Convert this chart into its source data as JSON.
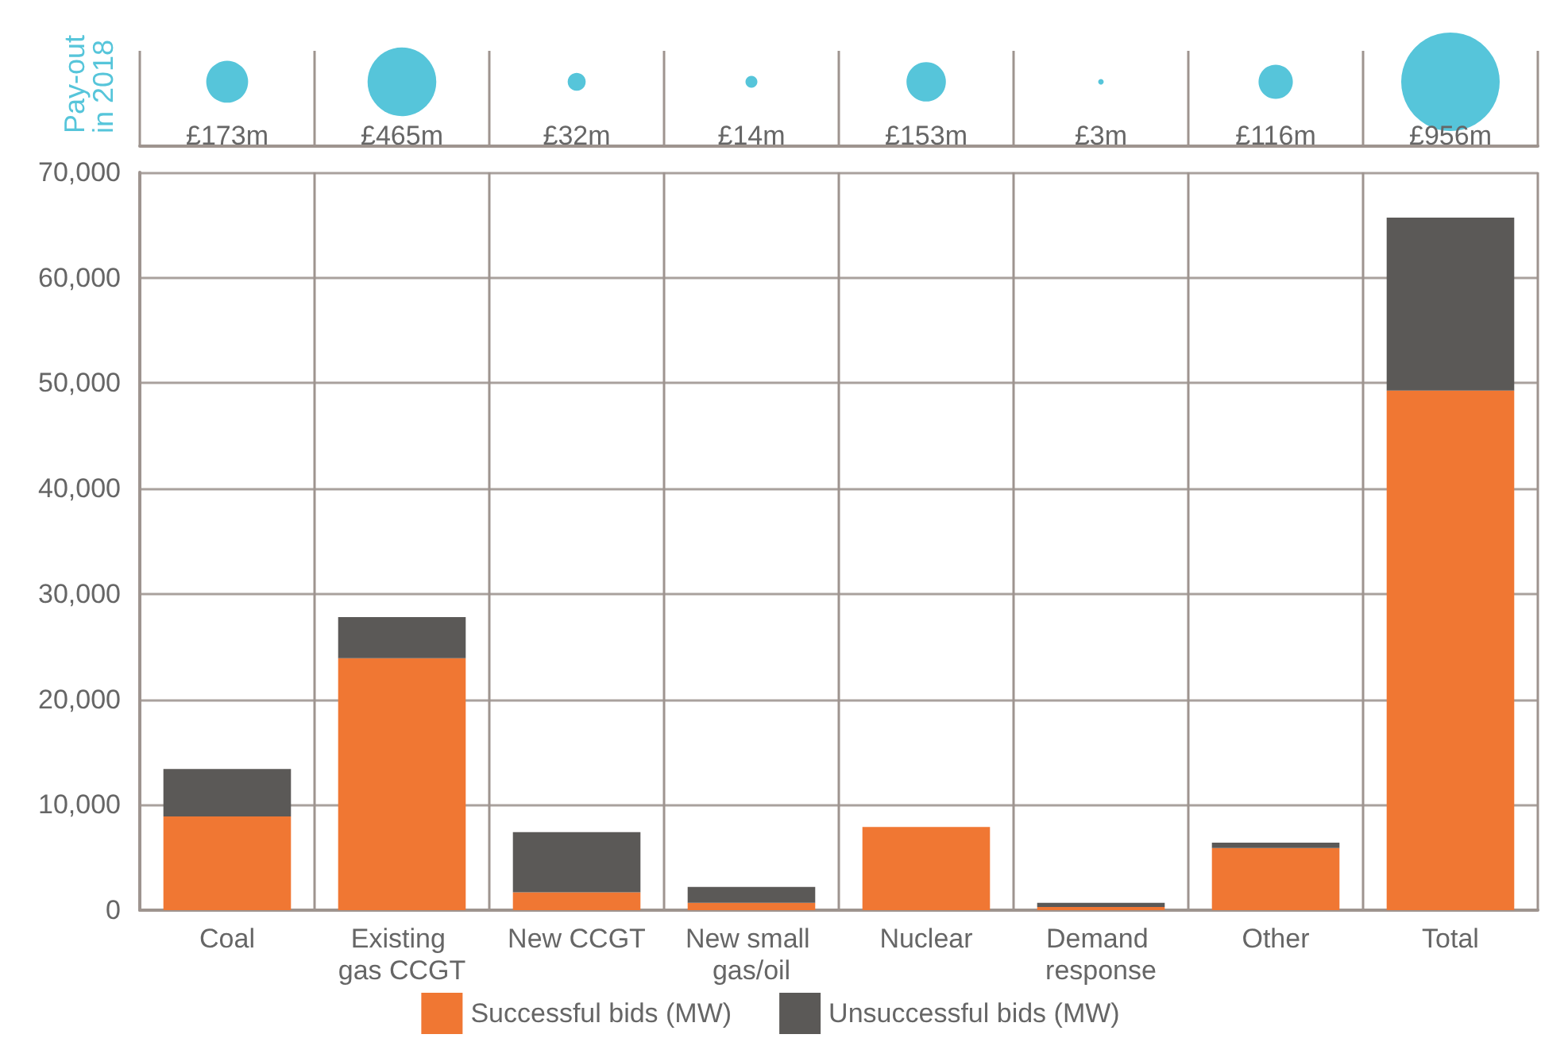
{
  "chart_data": [
    {
      "type": "other",
      "ylabel": "Pay-out in 2018",
      "categories": [
        null,
        null,
        null,
        null,
        null,
        null,
        null,
        null
      ],
      "color": "#56c5da",
      "values": [
        173,
        465,
        32,
        14,
        153,
        3,
        116,
        956
      ],
      "value_labels": [
        "£173m",
        "£465m",
        "£32m",
        "£14m",
        "£153m",
        "£3m",
        "£116m",
        "£956m"
      ]
    },
    {
      "type": "bar",
      "stacked": true,
      "grid": true,
      "legend": "bottom",
      "categories": [
        "Coal",
        "Existing gas CCGT",
        "New CCGT",
        "New small gas/oil",
        "Nuclear",
        "Demand response",
        "Other",
        "Total"
      ],
      "ylim": [
        0,
        70000
      ],
      "yticks": [
        0,
        {
          "value": 10000,
          "label": "10,000"
        },
        {
          "value": 20000,
          "label": "20,000"
        },
        {
          "value": 30000,
          "label": "30,000"
        },
        {
          "value": 40000,
          "label": "40,000"
        },
        {
          "value": 50000,
          "label": "50,000"
        },
        {
          "value": 60000,
          "label": "60,000"
        },
        {
          "value": 70000,
          "label": "70,000"
        }
      ],
      "series": [
        {
          "name": "Successful bids (MW)",
          "color": "#f07733",
          "values": [
            8900,
            23900,
            1700,
            700,
            7900,
            300,
            5900,
            49300
          ]
        },
        {
          "name": "Unsuccessful bids (MW)",
          "color": "#5b5957",
          "values": [
            4500,
            3900,
            5700,
            1500,
            0,
            400,
            500,
            16400
          ]
        }
      ]
    }
  ]
}
